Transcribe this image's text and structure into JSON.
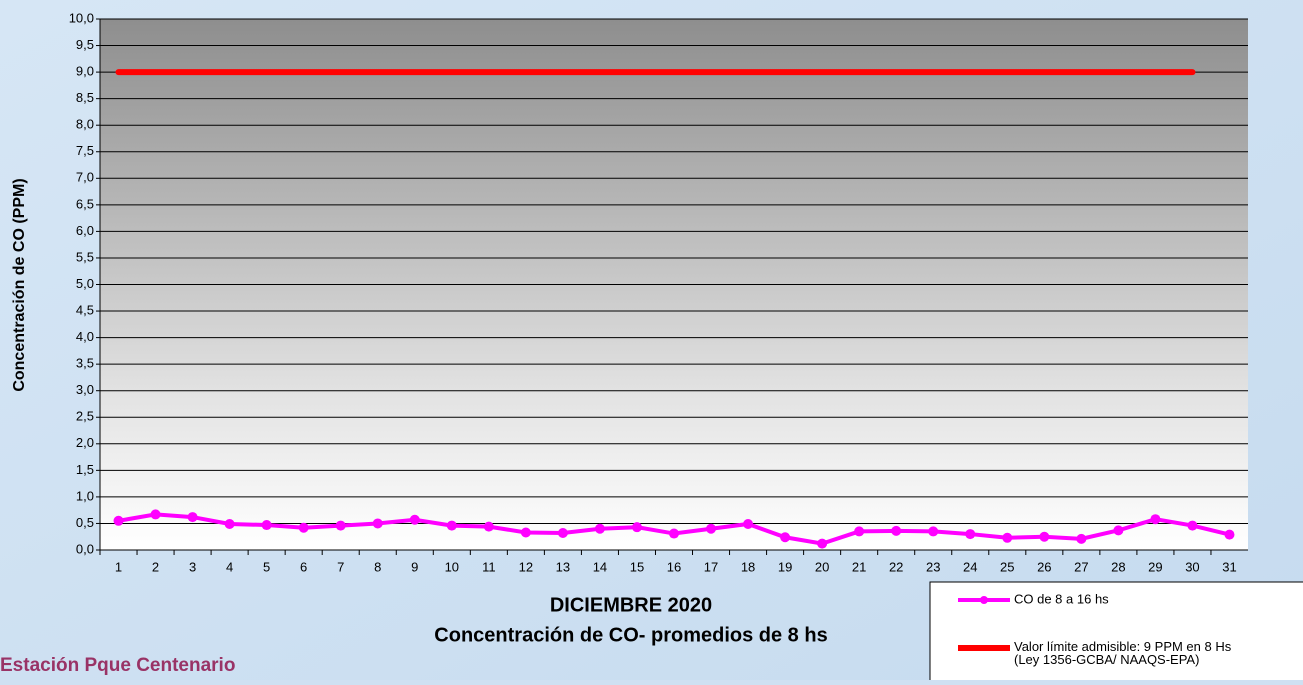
{
  "chart_data": {
    "type": "line",
    "title": "DICIEMBRE 2020",
    "subtitle": "Concentración de CO- promedios de 8 hs",
    "station": "Estación Pque Centenario",
    "y_label": "Concentración de CO (PPM)",
    "categories": [
      "1",
      "2",
      "3",
      "4",
      "5",
      "6",
      "7",
      "8",
      "9",
      "10",
      "11",
      "12",
      "13",
      "14",
      "15",
      "16",
      "17",
      "18",
      "19",
      "20",
      "21",
      "22",
      "23",
      "24",
      "25",
      "26",
      "27",
      "28",
      "29",
      "30",
      "31"
    ],
    "series": [
      {
        "name": "CO de 8 a 16 hs",
        "color": "#ff00ff",
        "markers": true,
        "values": [
          0.55,
          0.67,
          0.62,
          0.49,
          0.47,
          0.42,
          0.46,
          0.5,
          0.57,
          0.46,
          0.44,
          0.33,
          0.32,
          0.4,
          0.43,
          0.31,
          0.4,
          0.49,
          0.24,
          0.12,
          0.35,
          0.36,
          0.35,
          0.3,
          0.23,
          0.25,
          0.21,
          0.37,
          0.58,
          0.46,
          0.29
        ]
      },
      {
        "name": "Valor límite admisible: 9 PPM en 8 Hs\n(Ley 1356-GCBA/ NAAQS-EPA)",
        "color": "#ff0000",
        "markers": false,
        "values": [
          9,
          9,
          9,
          9,
          9,
          9,
          9,
          9,
          9,
          9,
          9,
          9,
          9,
          9,
          9,
          9,
          9,
          9,
          9,
          9,
          9,
          9,
          9,
          9,
          9,
          9,
          9,
          9,
          9,
          9,
          null
        ]
      }
    ],
    "ylim": [
      0,
      10
    ],
    "yticks": [
      {
        "value": 0,
        "label": "0,0"
      },
      {
        "value": 0.5,
        "label": "0,5"
      },
      {
        "value": 1,
        "label": "1,0"
      },
      {
        "value": 1.5,
        "label": "1,5"
      },
      {
        "value": 2,
        "label": "2,0"
      },
      {
        "value": 2.5,
        "label": "2,5"
      },
      {
        "value": 3,
        "label": "3,0"
      },
      {
        "value": 3.5,
        "label": "3,5"
      },
      {
        "value": 4,
        "label": "4,0"
      },
      {
        "value": 4.5,
        "label": "4,5"
      },
      {
        "value": 5,
        "label": "5,0"
      },
      {
        "value": 5.5,
        "label": "5,5"
      },
      {
        "value": 6,
        "label": "6,0"
      },
      {
        "value": 6.5,
        "label": "6,5"
      },
      {
        "value": 7,
        "label": "7,0"
      },
      {
        "value": 7.5,
        "label": "7,5"
      },
      {
        "value": 8,
        "label": "8,0"
      },
      {
        "value": 8.5,
        "label": "8,5"
      },
      {
        "value": 9,
        "label": "9,0"
      },
      {
        "value": 9.5,
        "label": "9,5"
      },
      {
        "value": 10,
        "label": "10,0"
      }
    ],
    "grid": true
  }
}
